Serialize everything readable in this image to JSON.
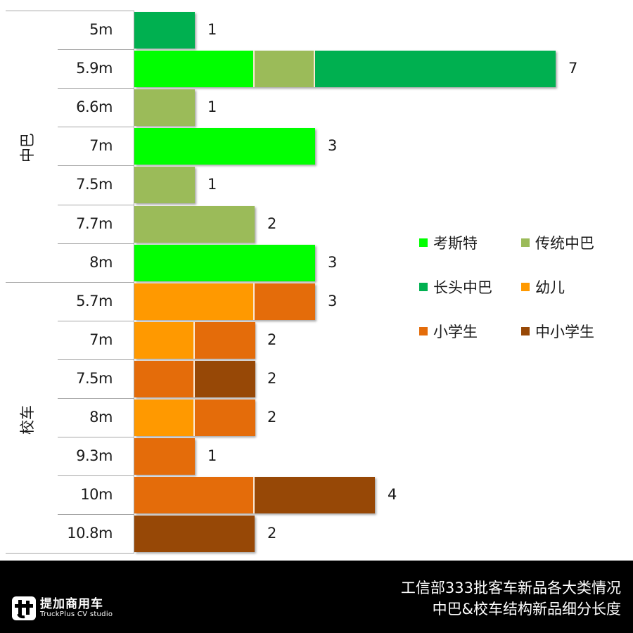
{
  "chart_data": {
    "type": "bar",
    "orientation": "horizontal",
    "stacked": true,
    "title": "工信部333批客车新品各大类情况 中巴&校车结构新品细分长度",
    "xlabel": "",
    "ylabel": "",
    "grid": false,
    "legend_position": "right",
    "groups": [
      {
        "name": "中巴",
        "categories": [
          "5m",
          "5.9m",
          "6.6m",
          "7m",
          "7.5m",
          "7.7m",
          "8m"
        ]
      },
      {
        "name": "校车",
        "categories": [
          "5.7m",
          "7m",
          "7.5m",
          "8m",
          "9.3m",
          "10m",
          "10.8m"
        ]
      }
    ],
    "categories": [
      "5m",
      "5.9m",
      "6.6m",
      "7m",
      "7.5m",
      "7.7m",
      "8m",
      "5.7m",
      "7m",
      "7.5m",
      "8m",
      "9.3m",
      "10m",
      "10.8m"
    ],
    "series": [
      {
        "name": "考斯特",
        "color": "#00FF00",
        "values": [
          0,
          2,
          0,
          3,
          0,
          0,
          3,
          0,
          0,
          0,
          0,
          0,
          0,
          0
        ]
      },
      {
        "name": "传统中巴",
        "color": "#9BBB59",
        "values": [
          0,
          1,
          1,
          0,
          1,
          2,
          0,
          0,
          0,
          0,
          0,
          0,
          0,
          0
        ]
      },
      {
        "name": "长头中巴",
        "color": "#00B050",
        "values": [
          1,
          4,
          0,
          0,
          0,
          0,
          0,
          0,
          0,
          0,
          0,
          0,
          0,
          0
        ]
      },
      {
        "name": "幼儿",
        "color": "#FF9900",
        "values": [
          0,
          0,
          0,
          0,
          0,
          0,
          0,
          2,
          1,
          0,
          1,
          0,
          0,
          0
        ]
      },
      {
        "name": "小学生",
        "color": "#E46C0A",
        "values": [
          0,
          0,
          0,
          0,
          0,
          0,
          0,
          1,
          1,
          1,
          1,
          1,
          2,
          0
        ]
      },
      {
        "name": "中小学生",
        "color": "#974806",
        "values": [
          0,
          0,
          0,
          0,
          0,
          0,
          0,
          0,
          0,
          1,
          0,
          0,
          2,
          2
        ]
      }
    ],
    "totals": [
      1,
      7,
      1,
      3,
      1,
      2,
      3,
      3,
      2,
      2,
      2,
      1,
      4,
      2
    ]
  },
  "rows": [
    {
      "label": "5m",
      "total": "1",
      "segments": [
        {
          "series": "长头中巴",
          "color": "#00B050",
          "value": 1
        }
      ]
    },
    {
      "label": "5.9m",
      "total": "7",
      "segments": [
        {
          "series": "考斯特",
          "color": "#00FF00",
          "value": 2
        },
        {
          "series": "传统中巴",
          "color": "#9BBB59",
          "value": 1
        },
        {
          "series": "长头中巴",
          "color": "#00B050",
          "value": 4
        }
      ]
    },
    {
      "label": "6.6m",
      "total": "1",
      "segments": [
        {
          "series": "传统中巴",
          "color": "#9BBB59",
          "value": 1
        }
      ]
    },
    {
      "label": "7m",
      "total": "3",
      "segments": [
        {
          "series": "考斯特",
          "color": "#00FF00",
          "value": 3
        }
      ]
    },
    {
      "label": "7.5m",
      "total": "1",
      "segments": [
        {
          "series": "传统中巴",
          "color": "#9BBB59",
          "value": 1
        }
      ]
    },
    {
      "label": "7.7m",
      "total": "2",
      "segments": [
        {
          "series": "传统中巴",
          "color": "#9BBB59",
          "value": 2
        }
      ]
    },
    {
      "label": "8m",
      "total": "3",
      "segments": [
        {
          "series": "考斯特",
          "color": "#00FF00",
          "value": 3
        }
      ]
    },
    {
      "label": "5.7m",
      "total": "3",
      "segments": [
        {
          "series": "幼儿",
          "color": "#FF9900",
          "value": 2
        },
        {
          "series": "小学生",
          "color": "#E46C0A",
          "value": 1
        }
      ]
    },
    {
      "label": "7m",
      "total": "2",
      "segments": [
        {
          "series": "幼儿",
          "color": "#FF9900",
          "value": 1
        },
        {
          "series": "小学生",
          "color": "#E46C0A",
          "value": 1
        }
      ]
    },
    {
      "label": "7.5m",
      "total": "2",
      "segments": [
        {
          "series": "小学生",
          "color": "#E46C0A",
          "value": 1
        },
        {
          "series": "中小学生",
          "color": "#974806",
          "value": 1
        }
      ]
    },
    {
      "label": "8m",
      "total": "2",
      "segments": [
        {
          "series": "幼儿",
          "color": "#FF9900",
          "value": 1
        },
        {
          "series": "小学生",
          "color": "#E46C0A",
          "value": 1
        }
      ]
    },
    {
      "label": "9.3m",
      "total": "1",
      "segments": [
        {
          "series": "小学生",
          "color": "#E46C0A",
          "value": 1
        }
      ]
    },
    {
      "label": "10m",
      "total": "4",
      "segments": [
        {
          "series": "小学生",
          "color": "#E46C0A",
          "value": 2
        },
        {
          "series": "中小学生",
          "color": "#974806",
          "value": 2
        }
      ]
    },
    {
      "label": "10.8m",
      "total": "2",
      "segments": [
        {
          "series": "中小学生",
          "color": "#974806",
          "value": 2
        }
      ]
    }
  ],
  "group_labels": {
    "minibus": "中巴",
    "school_bus": "校车"
  },
  "legend": [
    {
      "label": "考斯特",
      "color": "#00FF00"
    },
    {
      "label": "传统中巴",
      "color": "#9BBB59"
    },
    {
      "label": "长头中巴",
      "color": "#00B050"
    },
    {
      "label": "幼儿",
      "color": "#FF9900"
    },
    {
      "label": "小学生",
      "color": "#E46C0A"
    },
    {
      "label": "中小学生",
      "color": "#974806"
    }
  ],
  "footer": {
    "brand_cn": "提加商用车",
    "brand_en": "TruckPlus CV studio",
    "title_line1": "工信部333批客车新品各大类情况",
    "title_line2": "中巴&校车结构新品细分长度"
  }
}
